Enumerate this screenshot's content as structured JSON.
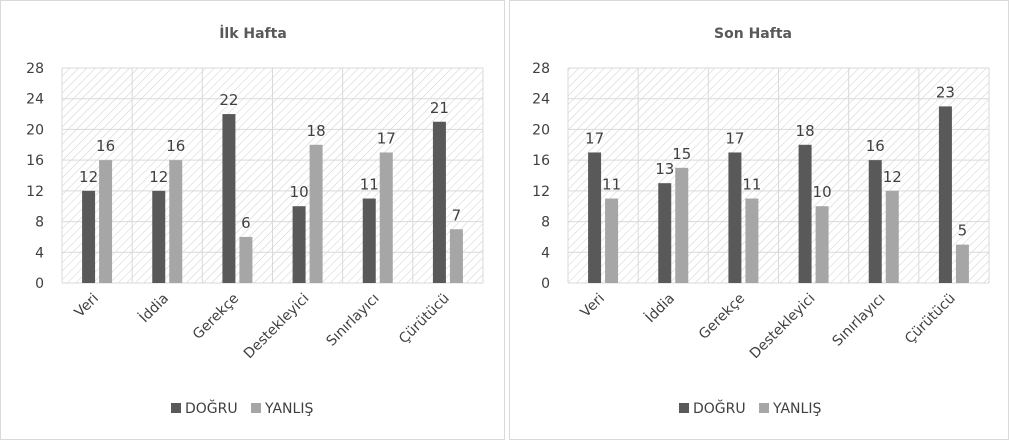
{
  "colors": {
    "dogru": "#595959",
    "yanlis": "#a6a6a6",
    "grid": "#d9d9d9",
    "hatch": "#cfcfcf"
  },
  "chart_data": [
    {
      "type": "bar",
      "title": "İlk Hafta",
      "categories": [
        "Veri",
        "İddia",
        "Gerekçe",
        "Destekleyici",
        "Sınırlayıcı",
        "Çürütücü"
      ],
      "series": [
        {
          "name": "DOĞRU",
          "values": [
            12,
            12,
            22,
            10,
            11,
            21
          ]
        },
        {
          "name": "YANLIŞ",
          "values": [
            16,
            16,
            6,
            18,
            17,
            7
          ]
        }
      ],
      "yticks": [
        0,
        4,
        8,
        12,
        16,
        20,
        24,
        28
      ],
      "ylim": [
        0,
        28
      ],
      "legend": "bottom"
    },
    {
      "type": "bar",
      "title": "Son Hafta",
      "categories": [
        "Veri",
        "İddia",
        "Gerekçe",
        "Destekleyici",
        "Sınırlayıcı",
        "Çürütücü"
      ],
      "series": [
        {
          "name": "DOĞRU",
          "values": [
            17,
            13,
            17,
            18,
            16,
            23
          ]
        },
        {
          "name": "YANLIŞ",
          "values": [
            11,
            15,
            11,
            10,
            12,
            5
          ]
        }
      ],
      "yticks": [
        0,
        4,
        8,
        12,
        16,
        20,
        24,
        28
      ],
      "ylim": [
        0,
        28
      ],
      "legend": "bottom"
    }
  ]
}
